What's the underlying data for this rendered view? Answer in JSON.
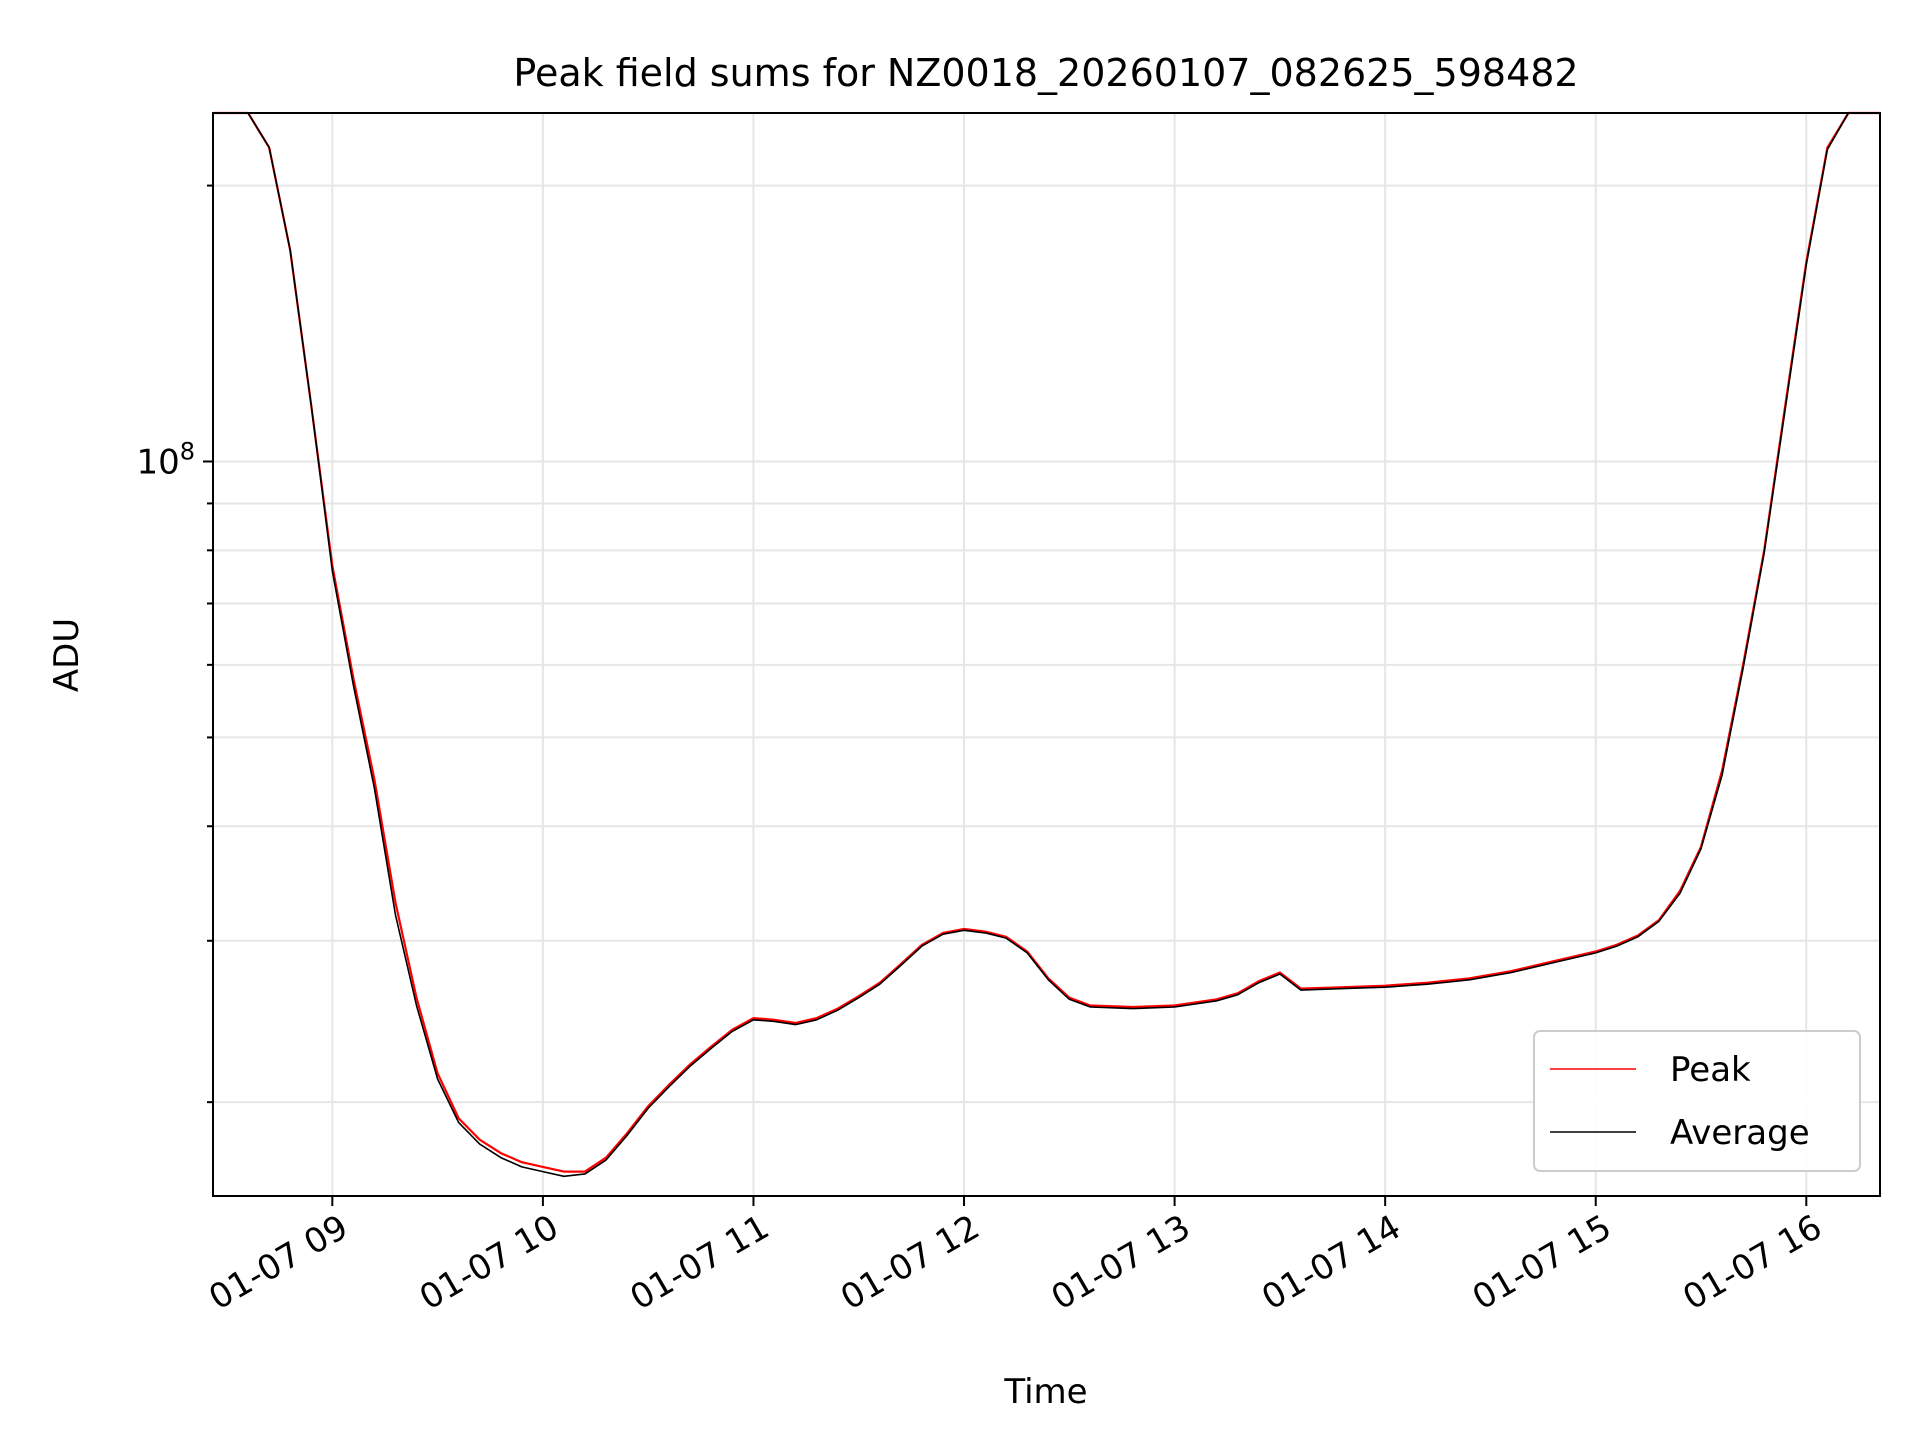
{
  "chart_data": {
    "type": "line",
    "title": "Peak field sums for NZ0018_20260107_082625_598482",
    "xlabel": "Time",
    "ylabel": "ADU",
    "y_scale": "log",
    "grid": true,
    "legend_position": "lower right",
    "x_tick_labels": [
      "01-07 09",
      "01-07 10",
      "01-07 11",
      "01-07 12",
      "01-07 13",
      "01-07 14",
      "01-07 15",
      "01-07 16"
    ],
    "x_ticks": [
      "2026-01-07 09:00",
      "2026-01-07 10:00",
      "2026-01-07 11:00",
      "2026-01-07 12:00",
      "2026-01-07 13:00",
      "2026-01-07 14:00",
      "2026-01-07 15:00",
      "2026-01-07 16:00"
    ],
    "x_range": [
      "2026-01-07 08:26",
      "2026-01-07 16:21"
    ],
    "y_major_tick": {
      "value": 100000000,
      "base": "10",
      "exponent": "8"
    },
    "y_range": [
      15800000,
      240000000
    ],
    "y_minor_ticks": [
      20000000,
      30000000,
      40000000,
      50000000,
      60000000,
      70000000,
      80000000,
      90000000,
      200000000
    ],
    "series": [
      {
        "name": "Peak",
        "color": "#ff0000",
        "x": [
          "2026-01-07 08:26",
          "2026-01-07 08:36",
          "2026-01-07 08:42",
          "2026-01-07 08:48",
          "2026-01-07 08:54",
          "2026-01-07 09:00",
          "2026-01-07 09:06",
          "2026-01-07 09:12",
          "2026-01-07 09:18",
          "2026-01-07 09:24",
          "2026-01-07 09:30",
          "2026-01-07 09:36",
          "2026-01-07 09:42",
          "2026-01-07 09:48",
          "2026-01-07 09:54",
          "2026-01-07 10:00",
          "2026-01-07 10:06",
          "2026-01-07 10:12",
          "2026-01-07 10:18",
          "2026-01-07 10:24",
          "2026-01-07 10:30",
          "2026-01-07 10:36",
          "2026-01-07 10:42",
          "2026-01-07 10:48",
          "2026-01-07 10:54",
          "2026-01-07 11:00",
          "2026-01-07 11:06",
          "2026-01-07 11:12",
          "2026-01-07 11:18",
          "2026-01-07 11:24",
          "2026-01-07 11:30",
          "2026-01-07 11:36",
          "2026-01-07 11:42",
          "2026-01-07 11:48",
          "2026-01-07 11:54",
          "2026-01-07 12:00",
          "2026-01-07 12:06",
          "2026-01-07 12:12",
          "2026-01-07 12:18",
          "2026-01-07 12:24",
          "2026-01-07 12:30",
          "2026-01-07 12:36",
          "2026-01-07 12:48",
          "2026-01-07 13:00",
          "2026-01-07 13:12",
          "2026-01-07 13:18",
          "2026-01-07 13:24",
          "2026-01-07 13:30",
          "2026-01-07 13:36",
          "2026-01-07 13:48",
          "2026-01-07 14:00",
          "2026-01-07 14:12",
          "2026-01-07 14:24",
          "2026-01-07 14:36",
          "2026-01-07 14:48",
          "2026-01-07 15:00",
          "2026-01-07 15:06",
          "2026-01-07 15:12",
          "2026-01-07 15:18",
          "2026-01-07 15:24",
          "2026-01-07 15:30",
          "2026-01-07 15:36",
          "2026-01-07 15:42",
          "2026-01-07 15:48",
          "2026-01-07 15:54",
          "2026-01-07 16:00",
          "2026-01-07 16:06",
          "2026-01-07 16:12",
          "2026-01-07 16:21"
        ],
        "y": [
          240000000,
          240000000,
          220000000,
          170000000,
          115000000,
          77000000,
          58000000,
          45000000,
          33000000,
          26000000,
          21500000,
          19200000,
          18200000,
          17600000,
          17200000,
          17000000,
          16800000,
          16800000,
          17400000,
          18500000,
          19800000,
          20900000,
          22000000,
          23000000,
          24000000,
          24700000,
          24600000,
          24400000,
          24700000,
          25300000,
          26100000,
          27000000,
          28300000,
          29700000,
          30600000,
          30900000,
          30700000,
          30300000,
          29200000,
          27300000,
          26000000,
          25500000,
          25400000,
          25500000,
          25900000,
          26300000,
          27100000,
          27700000,
          26600000,
          26700000,
          26800000,
          27000000,
          27300000,
          27800000,
          28500000,
          29200000,
          29700000,
          30400000,
          31600000,
          34000000,
          38000000,
          46000000,
          60000000,
          80000000,
          115000000,
          165000000,
          220000000,
          240000000,
          240000000
        ]
      },
      {
        "name": "Average",
        "color": "#000000",
        "x": [
          "2026-01-07 08:26",
          "2026-01-07 08:36",
          "2026-01-07 08:42",
          "2026-01-07 08:48",
          "2026-01-07 08:54",
          "2026-01-07 09:00",
          "2026-01-07 09:06",
          "2026-01-07 09:12",
          "2026-01-07 09:18",
          "2026-01-07 09:24",
          "2026-01-07 09:30",
          "2026-01-07 09:36",
          "2026-01-07 09:42",
          "2026-01-07 09:48",
          "2026-01-07 09:54",
          "2026-01-07 10:00",
          "2026-01-07 10:06",
          "2026-01-07 10:12",
          "2026-01-07 10:18",
          "2026-01-07 10:24",
          "2026-01-07 10:30",
          "2026-01-07 10:36",
          "2026-01-07 10:42",
          "2026-01-07 10:48",
          "2026-01-07 10:54",
          "2026-01-07 11:00",
          "2026-01-07 11:06",
          "2026-01-07 11:12",
          "2026-01-07 11:18",
          "2026-01-07 11:24",
          "2026-01-07 11:30",
          "2026-01-07 11:36",
          "2026-01-07 11:42",
          "2026-01-07 11:48",
          "2026-01-07 11:54",
          "2026-01-07 12:00",
          "2026-01-07 12:06",
          "2026-01-07 12:12",
          "2026-01-07 12:18",
          "2026-01-07 12:24",
          "2026-01-07 12:30",
          "2026-01-07 12:36",
          "2026-01-07 12:48",
          "2026-01-07 13:00",
          "2026-01-07 13:12",
          "2026-01-07 13:18",
          "2026-01-07 13:24",
          "2026-01-07 13:30",
          "2026-01-07 13:36",
          "2026-01-07 13:48",
          "2026-01-07 14:00",
          "2026-01-07 14:12",
          "2026-01-07 14:24",
          "2026-01-07 14:36",
          "2026-01-07 14:48",
          "2026-01-07 15:00",
          "2026-01-07 15:06",
          "2026-01-07 15:12",
          "2026-01-07 15:18",
          "2026-01-07 15:24",
          "2026-01-07 15:30",
          "2026-01-07 15:36",
          "2026-01-07 15:42",
          "2026-01-07 15:48",
          "2026-01-07 15:54",
          "2026-01-07 16:00",
          "2026-01-07 16:06",
          "2026-01-07 16:12",
          "2026-01-07 16:21"
        ],
        "y": [
          240000000,
          240000000,
          220000000,
          170000000,
          115000000,
          76000000,
          57000000,
          44000000,
          32000000,
          25500000,
          21200000,
          19000000,
          18000000,
          17400000,
          17000000,
          16800000,
          16600000,
          16700000,
          17300000,
          18400000,
          19700000,
          20800000,
          21900000,
          22900000,
          23900000,
          24600000,
          24500000,
          24300000,
          24600000,
          25200000,
          26000000,
          26900000,
          28200000,
          29600000,
          30500000,
          30800000,
          30600000,
          30200000,
          29100000,
          27200000,
          25900000,
          25400000,
          25300000,
          25400000,
          25800000,
          26200000,
          27000000,
          27600000,
          26500000,
          26600000,
          26700000,
          26900000,
          27200000,
          27700000,
          28400000,
          29100000,
          29600000,
          30300000,
          31500000,
          33800000,
          37800000,
          45500000,
          59500000,
          79500000,
          114000000,
          164000000,
          219000000,
          240000000,
          240000000
        ]
      }
    ]
  }
}
